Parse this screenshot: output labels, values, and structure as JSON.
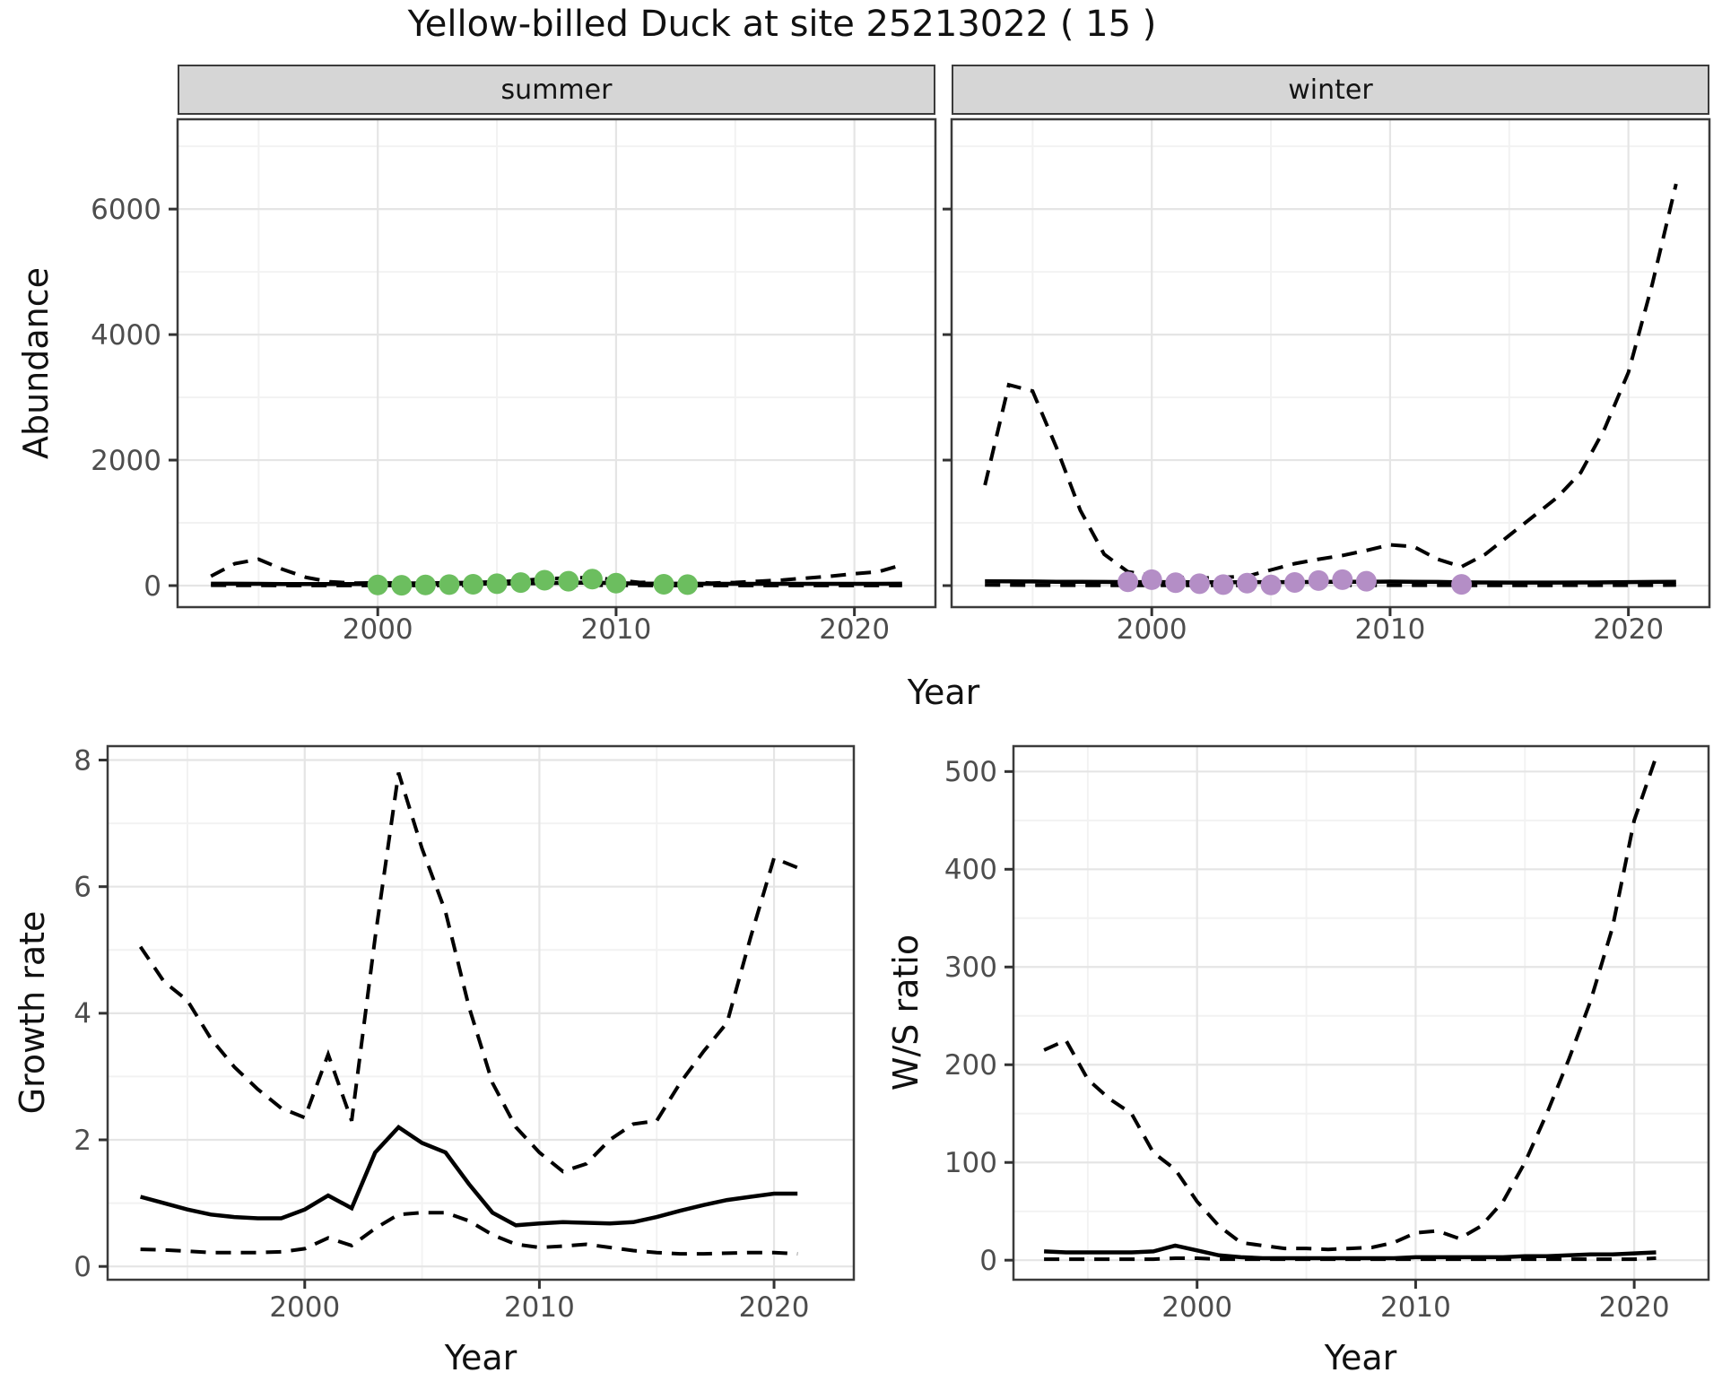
{
  "title": "Yellow-billed Duck at site 25213022 ( 15 )",
  "facets": {
    "summer": "summer",
    "winter": "winter"
  },
  "axis_titles": {
    "abundance": "Abundance",
    "year": "Year",
    "growth_rate": "Growth rate",
    "ws_ratio": "W/S ratio"
  },
  "colors": {
    "summer_points": "#6cbe5f",
    "winter_points": "#b48ec6",
    "line": "#000000",
    "strip_fill": "#d6d6d6",
    "panel_border": "#3b3b3b",
    "grid_major": "#e5e5e5",
    "grid_minor": "#f2f2f2",
    "tick_label": "#4d4d4d",
    "tick_mark": "#333333"
  },
  "chart_data": [
    {
      "id": "abundance-summer",
      "type": "line",
      "facet": "summer",
      "ylabel": "Abundance",
      "xlabel": "Year",
      "xlim": [
        1991.6,
        2023.4
      ],
      "ylim": [
        -343,
        7431
      ],
      "xticks": [
        2000,
        2010,
        2020
      ],
      "xticks_minor": [
        1995,
        2005,
        2015
      ],
      "yticks": [
        0,
        2000,
        4000,
        6000
      ],
      "yticks_minor": [
        1000,
        3000,
        5000,
        7000
      ],
      "show_y_tick_labels": true,
      "x": [
        1993,
        1994,
        1995,
        1996,
        1997,
        1998,
        1999,
        2000,
        2001,
        2002,
        2003,
        2004,
        2005,
        2006,
        2007,
        2008,
        2009,
        2010,
        2011,
        2012,
        2013,
        2014,
        2015,
        2016,
        2017,
        2018,
        2019,
        2020,
        2021,
        2022
      ],
      "series": [
        {
          "name": "upper_ci",
          "style": "dashed",
          "values": [
            150,
            350,
            420,
            260,
            130,
            60,
            40,
            45,
            40,
            40,
            45,
            50,
            60,
            80,
            110,
            120,
            130,
            90,
            50,
            60,
            60,
            40,
            50,
            70,
            90,
            120,
            150,
            190,
            220,
            330
          ]
        },
        {
          "name": "fit",
          "style": "solid",
          "values": [
            30,
            30,
            28,
            26,
            25,
            25,
            25,
            25,
            25,
            26,
            28,
            30,
            32,
            35,
            40,
            45,
            48,
            40,
            32,
            30,
            30,
            28,
            28,
            28,
            28,
            28,
            28,
            28,
            28,
            30
          ]
        },
        {
          "name": "lower_ci",
          "style": "dashed",
          "values": [
            5,
            4,
            3,
            2,
            2,
            2,
            2,
            2,
            2,
            2,
            2,
            2,
            3,
            3,
            4,
            5,
            5,
            4,
            3,
            2,
            2,
            2,
            2,
            2,
            2,
            2,
            2,
            2,
            2,
            2
          ]
        }
      ],
      "points": {
        "name": "observed-counts",
        "color_key": "summer_points",
        "years": [
          2000,
          2001,
          2002,
          2003,
          2004,
          2005,
          2006,
          2007,
          2008,
          2009,
          2010,
          2012,
          2013
        ],
        "values": [
          12,
          6,
          10,
          15,
          22,
          30,
          48,
          85,
          70,
          105,
          40,
          22,
          15
        ]
      }
    },
    {
      "id": "abundance-winter",
      "type": "line",
      "facet": "winter",
      "ylabel": "Abundance",
      "xlabel": "Year",
      "xlim": [
        1991.6,
        2023.4
      ],
      "ylim": [
        -343,
        7431
      ],
      "xticks": [
        2000,
        2010,
        2020
      ],
      "xticks_minor": [
        1995,
        2005,
        2015
      ],
      "yticks": [
        0,
        2000,
        4000,
        6000
      ],
      "yticks_minor": [
        1000,
        3000,
        5000,
        7000
      ],
      "show_y_tick_labels": false,
      "x": [
        1993,
        1994,
        1995,
        1996,
        1997,
        1998,
        1999,
        2000,
        2001,
        2002,
        2003,
        2004,
        2005,
        2006,
        2007,
        2008,
        2009,
        2010,
        2011,
        2012,
        2013,
        2014,
        2015,
        2016,
        2017,
        2018,
        2019,
        2020,
        2021,
        2022
      ],
      "series": [
        {
          "name": "upper_ci",
          "style": "dashed",
          "values": [
            1600,
            3200,
            3100,
            2200,
            1200,
            500,
            220,
            160,
            130,
            120,
            130,
            150,
            250,
            350,
            420,
            480,
            560,
            650,
            620,
            420,
            300,
            500,
            800,
            1100,
            1400,
            1800,
            2500,
            3400,
            4800,
            6400
          ]
        },
        {
          "name": "fit",
          "style": "solid",
          "values": [
            70,
            68,
            65,
            62,
            60,
            58,
            56,
            55,
            55,
            54,
            54,
            54,
            55,
            56,
            58,
            60,
            62,
            64,
            62,
            58,
            52,
            50,
            48,
            48,
            48,
            50,
            52,
            55,
            58,
            60
          ]
        },
        {
          "name": "lower_ci",
          "style": "dashed",
          "values": [
            10,
            8,
            6,
            5,
            4,
            3,
            3,
            3,
            3,
            3,
            3,
            3,
            3,
            4,
            4,
            5,
            5,
            6,
            6,
            5,
            4,
            4,
            4,
            4,
            4,
            5,
            5,
            6,
            6,
            8
          ]
        }
      ],
      "points": {
        "name": "observed-counts",
        "color_key": "winter_points",
        "years": [
          1999,
          2000,
          2001,
          2002,
          2003,
          2004,
          2005,
          2006,
          2007,
          2008,
          2009,
          2013
        ],
        "values": [
          60,
          95,
          45,
          30,
          15,
          40,
          10,
          50,
          80,
          95,
          70,
          20
        ]
      }
    },
    {
      "id": "growth-rate",
      "type": "line",
      "ylabel": "Growth rate",
      "xlabel": "Year",
      "xlim": [
        1991.6,
        2023.4
      ],
      "ylim": [
        -0.21,
        8.22
      ],
      "xticks": [
        2000,
        2010,
        2020
      ],
      "xticks_minor": [
        1995,
        2005,
        2015
      ],
      "yticks": [
        0,
        2,
        4,
        6,
        8
      ],
      "yticks_minor": [
        1,
        3,
        5,
        7
      ],
      "show_y_tick_labels": true,
      "x": [
        1993,
        1994,
        1995,
        1996,
        1997,
        1998,
        1999,
        2000,
        2001,
        2002,
        2003,
        2004,
        2005,
        2006,
        2007,
        2008,
        2009,
        2010,
        2011,
        2012,
        2013,
        2014,
        2015,
        2016,
        2017,
        2018,
        2019,
        2020,
        2021
      ],
      "series": [
        {
          "name": "upper_ci",
          "style": "dashed",
          "values": [
            5.05,
            4.5,
            4.2,
            3.6,
            3.15,
            2.8,
            2.5,
            2.35,
            3.35,
            2.3,
            5.2,
            7.8,
            6.6,
            5.6,
            4.1,
            2.9,
            2.2,
            1.8,
            1.5,
            1.62,
            2.0,
            2.25,
            2.3,
            2.9,
            3.4,
            3.85,
            5.2,
            6.45,
            6.3
          ]
        },
        {
          "name": "fit",
          "style": "solid",
          "values": [
            1.1,
            1.0,
            0.9,
            0.82,
            0.78,
            0.76,
            0.76,
            0.9,
            1.12,
            0.92,
            1.8,
            2.2,
            1.95,
            1.8,
            1.3,
            0.85,
            0.65,
            0.68,
            0.7,
            0.69,
            0.68,
            0.7,
            0.78,
            0.88,
            0.97,
            1.05,
            1.1,
            1.15,
            1.15
          ]
        },
        {
          "name": "lower_ci",
          "style": "dashed",
          "values": [
            0.27,
            0.26,
            0.24,
            0.22,
            0.22,
            0.22,
            0.23,
            0.28,
            0.45,
            0.33,
            0.6,
            0.82,
            0.85,
            0.85,
            0.72,
            0.5,
            0.35,
            0.3,
            0.32,
            0.35,
            0.3,
            0.25,
            0.22,
            0.2,
            0.2,
            0.21,
            0.22,
            0.22,
            0.2
          ]
        }
      ],
      "points": null
    },
    {
      "id": "ws-ratio",
      "type": "line",
      "ylabel": "W/S ratio",
      "xlabel": "Year",
      "xlim": [
        1991.6,
        2023.4
      ],
      "ylim": [
        -20,
        526
      ],
      "xticks": [
        2000,
        2010,
        2020
      ],
      "xticks_minor": [
        1995,
        2005,
        2015
      ],
      "yticks": [
        0,
        100,
        200,
        300,
        400,
        500
      ],
      "yticks_minor": [
        50,
        150,
        250,
        350,
        450
      ],
      "show_y_tick_labels": true,
      "x": [
        1993,
        1994,
        1995,
        1996,
        1997,
        1998,
        1999,
        2000,
        2001,
        2002,
        2003,
        2004,
        2005,
        2006,
        2007,
        2008,
        2009,
        2010,
        2011,
        2012,
        2013,
        2014,
        2015,
        2016,
        2017,
        2018,
        2019,
        2020,
        2021
      ],
      "series": [
        {
          "name": "upper_ci",
          "style": "dashed",
          "values": [
            215,
            225,
            185,
            165,
            150,
            110,
            93,
            60,
            35,
            18,
            15,
            12,
            12,
            11,
            12,
            13,
            18,
            28,
            30,
            22,
            35,
            60,
            100,
            150,
            205,
            265,
            340,
            450,
            515
          ]
        },
        {
          "name": "fit",
          "style": "solid",
          "values": [
            9,
            8,
            8,
            8,
            8,
            9,
            15,
            10,
            5,
            3,
            2,
            2,
            2,
            2,
            2,
            2,
            2,
            3,
            3,
            3,
            3,
            3,
            4,
            4,
            5,
            6,
            6,
            7,
            8
          ]
        },
        {
          "name": "lower_ci",
          "style": "dashed",
          "values": [
            1,
            1,
            1,
            1,
            1,
            1,
            2,
            2,
            1,
            1,
            1,
            1,
            1,
            1,
            1,
            1,
            1,
            1,
            1,
            1,
            1,
            1,
            1,
            1,
            1,
            1,
            1,
            1,
            2
          ]
        }
      ],
      "points": null
    }
  ]
}
